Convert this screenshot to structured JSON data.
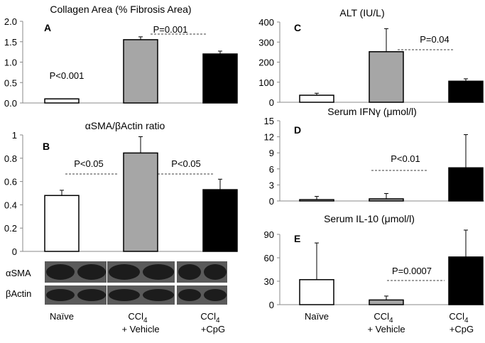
{
  "chart_data": [
    {
      "panel": "A",
      "type": "bar",
      "title": "Collagen Area (% Fibrosis Area)",
      "categories": [
        "Naïve",
        "CCl4 + Vehicle",
        "CCl4 +CpG"
      ],
      "values": [
        0.1,
        1.55,
        1.2
      ],
      "errors": [
        0,
        0.07,
        0.07
      ],
      "fills": [
        "#ffffff",
        "#a6a6a6",
        "#000000"
      ],
      "ylim": [
        0,
        2
      ],
      "yticks": [
        "0.0",
        "0.5",
        "1.0",
        "1.5",
        "2.0"
      ],
      "annotations": [
        {
          "text": "P<0.001",
          "dashed": false
        },
        {
          "text": "P=0.001",
          "dashed": true
        }
      ]
    },
    {
      "panel": "B",
      "type": "bar",
      "title": "αSMA/βActin ratio",
      "categories": [
        "Naïve",
        "CCl4 + Vehicle",
        "CCl4 +CpG"
      ],
      "values": [
        0.48,
        0.845,
        0.53
      ],
      "errors": [
        0.045,
        0.14,
        0.09
      ],
      "fills": [
        "#ffffff",
        "#a6a6a6",
        "#000000"
      ],
      "ylim": [
        0,
        1
      ],
      "yticks": [
        "0",
        "0.2",
        "0.4",
        "0.6",
        "0.8",
        "1"
      ],
      "annotations": [
        {
          "text": "P<0.05",
          "dashed": true
        },
        {
          "text": "P<0.05",
          "dashed": true
        }
      ]
    },
    {
      "panel": "C",
      "type": "bar",
      "title": "ALT (IU/L)",
      "categories": [
        "Naïve",
        "CCl4 + Vehicle",
        "CCl4 +CpG"
      ],
      "values": [
        35,
        252,
        105
      ],
      "errors": [
        10,
        115,
        12
      ],
      "fills": [
        "#ffffff",
        "#a6a6a6",
        "#000000"
      ],
      "ylim": [
        0,
        400
      ],
      "yticks": [
        "0",
        "100",
        "200",
        "300",
        "400"
      ],
      "annotations": [
        {
          "text": "P=0.04",
          "dashed": true
        }
      ]
    },
    {
      "panel": "D",
      "type": "bar",
      "title": "Serum IFNγ (μmol/l)",
      "categories": [
        "Naïve",
        "CCl4 + Vehicle",
        "CCl4 +CpG"
      ],
      "values": [
        0.25,
        0.4,
        6.2
      ],
      "errors": [
        0.6,
        1.0,
        6.2
      ],
      "fills": [
        "#ffffff",
        "#a6a6a6",
        "#000000"
      ],
      "ylim": [
        0,
        15
      ],
      "yticks": [
        "0",
        "3",
        "6",
        "9",
        "12",
        "15"
      ],
      "annotations": [
        {
          "text": "P<0.01",
          "dashed": true
        }
      ]
    },
    {
      "panel": "E",
      "type": "bar",
      "title": "Serum IL-10 (μmol/l)",
      "categories": [
        "Naïve",
        "CCl4 + Vehicle",
        "CCl4 +CpG"
      ],
      "values": [
        32,
        6,
        61
      ],
      "errors": [
        47,
        5,
        37
      ],
      "fills": [
        "#ffffff",
        "#a6a6a6",
        "#000000"
      ],
      "ylim": [
        0,
        90
      ],
      "yticks": [
        "0",
        "30",
        "60",
        "90"
      ],
      "annotations": [
        {
          "text": "P=0.0007",
          "dashed": true
        }
      ]
    }
  ],
  "blot": {
    "labels": [
      "αSMA",
      "βActin"
    ]
  },
  "category_labels": {
    "naive": "Naïve",
    "ccl4_main": "CCl",
    "ccl4_sub": "4",
    "vehicle": "+ Vehicle",
    "cpg": "+CpG"
  }
}
